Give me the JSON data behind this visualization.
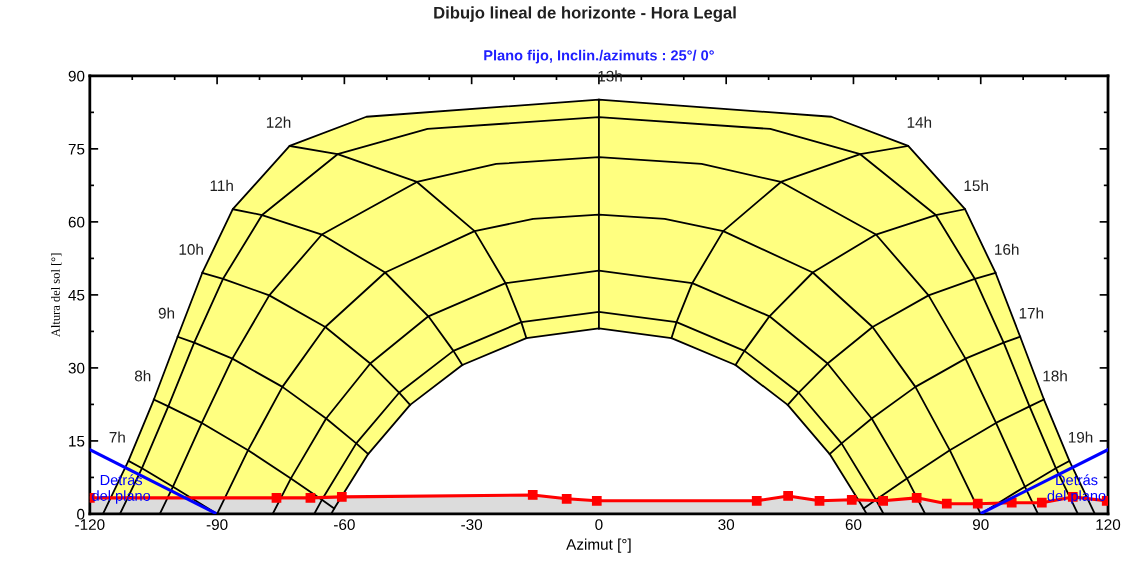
{
  "chart_data": {
    "type": "line",
    "title": "Dibujo lineal de horizonte - Hora Legal",
    "subtitle": "Plano fijo, Inclin./azimuts : 25°/ 0°",
    "xlabel": "Azimut [°]",
    "ylabel": "Altura del sol [°]",
    "xlim": [
      -120,
      120
    ],
    "ylim": [
      0,
      90
    ],
    "xticks": [
      -120,
      {
        "value": -110,
        "label": null
      },
      {
        "value": -100,
        "label": null
      },
      -90,
      {
        "value": -80,
        "label": null
      },
      {
        "value": -70,
        "label": null
      },
      -60,
      {
        "value": -50,
        "label": null
      },
      {
        "value": -40,
        "label": null
      },
      -30,
      {
        "value": -20,
        "label": null
      },
      {
        "value": -10,
        "label": null
      },
      0,
      {
        "value": 10,
        "label": null
      },
      {
        "value": 20,
        "label": null
      },
      30,
      {
        "value": 40,
        "label": null
      },
      {
        "value": 50,
        "label": null
      },
      60,
      {
        "value": 70,
        "label": null
      },
      {
        "value": 80,
        "label": null
      },
      90,
      {
        "value": 100,
        "label": null
      },
      {
        "value": 110,
        "label": null
      },
      120
    ],
    "yticks": [
      0,
      {
        "value": 7.5,
        "label": null
      },
      15,
      {
        "value": 22.5,
        "label": null
      },
      30,
      {
        "value": 37.5,
        "label": null
      },
      45,
      {
        "value": 52.5,
        "label": null
      },
      60,
      {
        "value": 67.5,
        "label": null
      },
      75,
      {
        "value": 82.5,
        "label": null
      },
      90
    ],
    "annotations": [
      {
        "text": "7h",
        "x": -110.9,
        "y": 10.9
      },
      {
        "text": "8h",
        "x": -104.9,
        "y": 23.5
      },
      {
        "text": "9h",
        "x": -99.3,
        "y": 36.4
      },
      {
        "text": "10h",
        "x": -93.5,
        "y": 49.5
      },
      {
        "text": "11h",
        "x": -86.3,
        "y": 62.6
      },
      {
        "text": "12h",
        "x": -72.9,
        "y": 75.6
      },
      {
        "text": "13h",
        "x": 0,
        "y": 85.1
      },
      {
        "text": "14h",
        "x": 72.9,
        "y": 75.6
      },
      {
        "text": "15h",
        "x": 86.3,
        "y": 62.6
      },
      {
        "text": "16h",
        "x": 93.5,
        "y": 49.5
      },
      {
        "text": "17h",
        "x": 99.3,
        "y": 36.4
      },
      {
        "text": "18h",
        "x": 104.9,
        "y": 23.5
      },
      {
        "text": "19h",
        "x": 110.9,
        "y": 10.9
      }
    ],
    "series": [
      {
        "type": "area",
        "color": "#ffff80",
        "line_style": "solid",
        "x": [
          -116.9,
          -110.9,
          -104.9,
          -99.3,
          -93.5,
          -86.3,
          -72.9,
          -54.8,
          0,
          54.8,
          72.9,
          86.3,
          93.5,
          99.3,
          104.9,
          110.9,
          116.9
        ],
        "values": [
          0,
          10.9,
          23.5,
          36.4,
          49.5,
          62.6,
          75.6,
          81.6,
          85.1,
          81.6,
          75.6,
          62.6,
          49.5,
          36.4,
          23.5,
          10.9,
          0
        ]
      },
      {
        "type": "area",
        "color": "#ffffff",
        "line_style": "solid",
        "x": [
          -63.1,
          -62.4,
          -54.4,
          -44.5,
          -32.2,
          -17.1,
          0,
          17.1,
          32.2,
          44.5,
          54.4,
          62.4,
          63.1
        ],
        "values": [
          0,
          1.1,
          12.3,
          22.4,
          30.6,
          36.1,
          38.1,
          36.1,
          30.6,
          22.4,
          12.3,
          1.1,
          0
        ]
      },
      {
        "color": "#000000",
        "x": [
          -112.9,
          -107.7,
          -101.5,
          -95.4,
          -88.6,
          -79.4,
          -61.6,
          -40.4,
          0,
          40.4,
          61.6,
          79.4,
          88.6,
          95.4,
          101.5,
          107.7,
          112.9
        ],
        "values": [
          0,
          9.4,
          22.1,
          35.2,
          48.3,
          61.4,
          73.9,
          79.1,
          81.5,
          79.1,
          73.9,
          61.4,
          48.3,
          35.2,
          22.1,
          9.4,
          0
        ]
      },
      {
        "color": "#000000",
        "x": [
          -103.5,
          -100.4,
          -93.6,
          -86.4,
          -77.7,
          -65.3,
          -42.9,
          -24.2,
          0,
          24.2,
          42.9,
          65.3,
          77.7,
          86.4,
          93.6,
          100.4,
          103.5
        ],
        "values": [
          0,
          5.6,
          18.7,
          31.9,
          44.9,
          57.4,
          68.2,
          71.9,
          73.3,
          71.9,
          68.2,
          57.4,
          44.9,
          31.9,
          18.7,
          5.6,
          0
        ]
      },
      {
        "color": "#000000",
        "x": [
          -90,
          -82.7,
          -74.6,
          -64.5,
          -50.4,
          -29.3,
          -15.5,
          0,
          15.5,
          29.3,
          50.4,
          64.5,
          74.6,
          82.7,
          90
        ],
        "values": [
          0,
          13.1,
          26.1,
          38.4,
          49.6,
          58.1,
          60.6,
          61.5,
          60.6,
          58.1,
          49.6,
          38.4,
          26.1,
          13.1,
          0
        ]
      },
      {
        "color": "#000000",
        "x": [
          -76.9,
          -72.6,
          -64.3,
          -53.9,
          -40.2,
          -22.0,
          0,
          22.0,
          40.2,
          53.9,
          64.3,
          72.6,
          76.9
        ],
        "values": [
          0,
          7.3,
          19.6,
          30.9,
          40.6,
          47.4,
          50.0,
          47.4,
          40.6,
          30.9,
          19.6,
          7.3,
          0
        ]
      },
      {
        "color": "#000000",
        "x": [
          -67.1,
          -65.3,
          -57.2,
          -47.1,
          -34.3,
          -18.3,
          0,
          18.3,
          34.3,
          47.1,
          57.2,
          65.3,
          67.1
        ],
        "values": [
          0,
          2.9,
          14.5,
          24.9,
          33.5,
          39.4,
          41.5,
          39.4,
          33.5,
          24.9,
          14.5,
          2.9,
          0
        ]
      },
      {
        "color": "#000000",
        "x": [
          -110.9,
          -107.7,
          -100.4,
          -90
        ],
        "values": [
          10.9,
          9.4,
          5.6,
          0
        ]
      },
      {
        "color": "#000000",
        "x": [
          -104.9,
          -101.5,
          -93.6,
          -82.7,
          -72.6,
          -65.3,
          -62.4
        ],
        "values": [
          23.5,
          22.1,
          18.7,
          13.1,
          7.3,
          2.9,
          1.1
        ]
      },
      {
        "color": "#000000",
        "x": [
          -99.3,
          -95.4,
          -86.4,
          -74.6,
          -64.3,
          -57.2,
          -54.4
        ],
        "values": [
          36.4,
          35.2,
          31.9,
          26.1,
          19.6,
          14.5,
          12.3
        ]
      },
      {
        "color": "#000000",
        "x": [
          -93.5,
          -88.6,
          -77.7,
          -64.5,
          -53.9,
          -47.1,
          -44.5
        ],
        "values": [
          49.5,
          48.3,
          44.9,
          38.4,
          30.9,
          24.9,
          22.4
        ]
      },
      {
        "color": "#000000",
        "x": [
          -86.3,
          -79.4,
          -65.3,
          -50.4,
          -40.2,
          -34.3,
          -32.2
        ],
        "values": [
          62.6,
          61.4,
          57.4,
          49.6,
          40.6,
          33.5,
          30.6
        ]
      },
      {
        "color": "#000000",
        "x": [
          -72.9,
          -61.6,
          -42.9,
          -29.3,
          -22.0,
          -18.3,
          -17.1
        ],
        "values": [
          75.6,
          73.9,
          68.2,
          58.1,
          47.4,
          39.4,
          36.1
        ]
      },
      {
        "color": "#000000",
        "x": [
          0,
          0,
          0,
          0,
          0,
          0,
          0
        ],
        "values": [
          85.1,
          81.5,
          73.3,
          61.5,
          50.0,
          41.5,
          38.1
        ]
      },
      {
        "color": "#000000",
        "x": [
          72.9,
          61.6,
          42.9,
          29.3,
          22.0,
          18.3,
          17.1
        ],
        "values": [
          75.6,
          73.9,
          68.2,
          58.1,
          47.4,
          39.4,
          36.1
        ]
      },
      {
        "color": "#000000",
        "x": [
          86.3,
          79.4,
          65.3,
          50.4,
          40.2,
          34.3,
          32.2
        ],
        "values": [
          62.6,
          61.4,
          57.4,
          49.6,
          40.6,
          33.5,
          30.6
        ]
      },
      {
        "color": "#000000",
        "x": [
          93.5,
          88.6,
          77.7,
          64.5,
          53.9,
          47.1,
          44.5
        ],
        "values": [
          49.5,
          48.3,
          44.9,
          38.4,
          30.9,
          24.9,
          22.4
        ]
      },
      {
        "color": "#000000",
        "x": [
          99.3,
          95.4,
          86.4,
          74.6,
          64.3,
          57.2,
          54.4
        ],
        "values": [
          36.4,
          35.2,
          31.9,
          26.1,
          19.6,
          14.5,
          12.3
        ]
      },
      {
        "color": "#000000",
        "x": [
          104.9,
          101.5,
          93.6,
          82.7,
          72.6,
          65.3,
          62.4
        ],
        "values": [
          23.5,
          22.1,
          18.7,
          13.1,
          7.3,
          2.9,
          1.1
        ]
      },
      {
        "color": "#000000",
        "x": [
          110.9,
          107.7,
          100.4,
          90
        ],
        "values": [
          10.9,
          9.4,
          5.6,
          0
        ]
      },
      {
        "color": "#ff0000",
        "marker": "square",
        "x": [
          -120,
          -76,
          -68,
          -60.6,
          -15.6,
          -7.6,
          -0.5,
          37.2,
          44.6,
          52,
          59.6,
          67,
          74.9,
          82,
          89.3,
          97.3,
          104.4,
          111.7,
          119.7
        ],
        "values": [
          3.3,
          3.3,
          3.3,
          3.5,
          3.9,
          3.1,
          2.7,
          2.7,
          3.7,
          2.7,
          2.9,
          2.7,
          3.3,
          2.1,
          2.1,
          2.3,
          2.3,
          3.5,
          2.7
        ],
        "lower": [
          0,
          0,
          0,
          0,
          0,
          0,
          0,
          0,
          0,
          0,
          0,
          0,
          0,
          0,
          0,
          0,
          0,
          0,
          0
        ],
        "upper": [
          3.3,
          3.3,
          3.3,
          3.5,
          3.9,
          3.1,
          2.7,
          2.7,
          3.7,
          2.7,
          2.9,
          2.7,
          3.3,
          2.1,
          2.1,
          2.3,
          2.3,
          3.5,
          2.7
        ]
      },
      {
        "color": "#0000ff",
        "name": "Detrás\ndel plano",
        "x": [
          -120,
          -90.5
        ],
        "values": [
          13.2,
          0.2
        ]
      },
      {
        "color": "#0000ff",
        "name": "Detrás\ndel plano",
        "x": [
          90.3,
          120
        ],
        "values": [
          0.2,
          13.2
        ]
      }
    ]
  }
}
